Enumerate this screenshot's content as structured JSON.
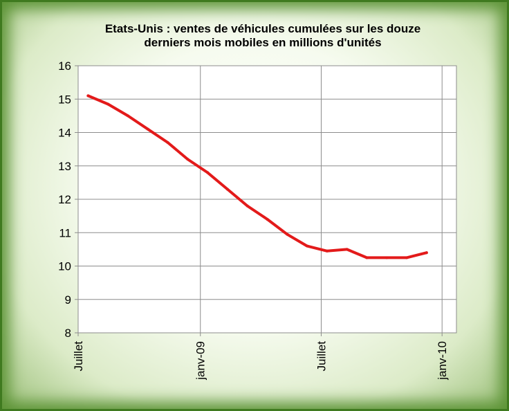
{
  "chart_data": {
    "type": "line",
    "title": "Etats-Unis : ventes de véhicules  cumulées sur les douze\nderniers mois mobiles en millions d'unités",
    "xlabel": "",
    "ylabel": "",
    "ylim": [
      8,
      16
    ],
    "yticks": [
      8,
      9,
      10,
      11,
      12,
      13,
      14,
      15,
      16
    ],
    "x_tick_labels": [
      "Juillet",
      "janv-09",
      "Juillet",
      "janv-10"
    ],
    "grid": true,
    "legend": "none",
    "series": [
      {
        "color": "#e31a1a",
        "x": [
          "2008-07",
          "2008-08",
          "2008-09",
          "2008-10",
          "2008-11",
          "2008-12",
          "2009-01",
          "2009-02",
          "2009-03",
          "2009-04",
          "2009-05",
          "2009-06",
          "2009-07",
          "2009-08",
          "2009-09",
          "2009-10",
          "2009-11",
          "2009-12"
        ],
        "values": [
          15.1,
          14.85,
          14.5,
          14.1,
          13.7,
          13.2,
          12.8,
          12.3,
          11.8,
          11.4,
          10.95,
          10.6,
          10.45,
          10.5,
          10.25,
          10.25,
          10.25,
          10.4
        ]
      }
    ]
  }
}
